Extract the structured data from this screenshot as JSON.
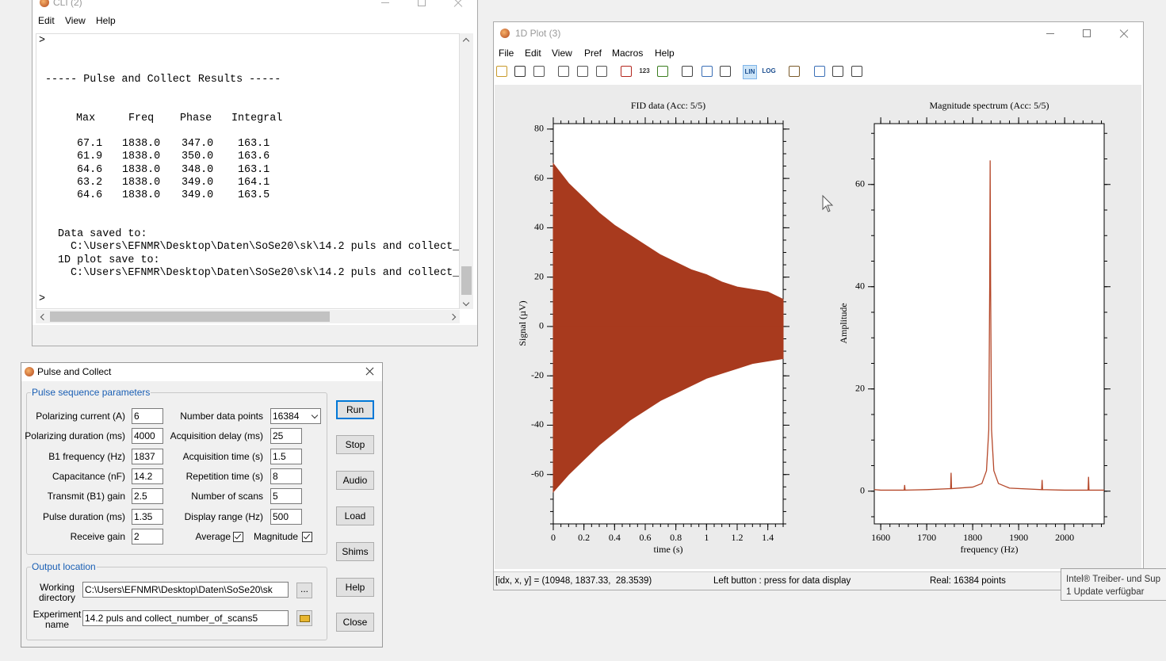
{
  "cli_window": {
    "title": "CLI (2)",
    "menu": [
      "Edit",
      "View",
      "Help"
    ],
    "prompts": [
      ">",
      ">"
    ],
    "heading": "----- Pulse and Collect Results -----",
    "table": {
      "header": [
        "Max",
        "Freq",
        "Phase",
        "Integral"
      ],
      "rows": [
        [
          "67.1",
          "1838.0",
          "347.0",
          "163.1"
        ],
        [
          "61.9",
          "1838.0",
          "350.0",
          "163.6"
        ],
        [
          "64.6",
          "1838.0",
          "348.0",
          "163.1"
        ],
        [
          "63.2",
          "1838.0",
          "349.0",
          "164.1"
        ],
        [
          "64.6",
          "1838.0",
          "349.0",
          "163.5"
        ]
      ]
    },
    "saved": [
      "Data saved to:",
      "C:\\Users\\EFNMR\\Desktop\\Daten\\SoSe20\\sk\\14.2 puls and collect_",
      "1D plot save to:",
      "C:\\Users\\EFNMR\\Desktop\\Daten\\SoSe20\\sk\\14.2 puls and collect_"
    ]
  },
  "pulse_dialog": {
    "title": "Pulse and Collect",
    "group_params": "Pulse sequence parameters",
    "params_left": [
      {
        "label": "Polarizing current (A)",
        "value": "6"
      },
      {
        "label": "Polarizing duration (ms)",
        "value": "4000"
      },
      {
        "label": "B1 frequency (Hz)",
        "value": "1837"
      },
      {
        "label": "Capacitance (nF)",
        "value": "14.2"
      },
      {
        "label": "Transmit (B1) gain",
        "value": "2.5"
      },
      {
        "label": "Pulse duration (ms)",
        "value": "1.35"
      },
      {
        "label": "Receive gain",
        "value": "2"
      }
    ],
    "params_right": [
      {
        "label": "Number data points",
        "value": "16384"
      },
      {
        "label": "Acquisition delay (ms)",
        "value": "25"
      },
      {
        "label": "Acquisition time (s)",
        "value": "1.5"
      },
      {
        "label": "Repetition time (s)",
        "value": "8"
      },
      {
        "label": "Number of scans",
        "value": "5"
      },
      {
        "label": "Display range (Hz)",
        "value": "500"
      }
    ],
    "checkboxes": [
      {
        "label": "Average",
        "checked": true
      },
      {
        "label": "Magnitude",
        "checked": true
      }
    ],
    "group_output": "Output location",
    "working_directory": {
      "label": "Working directory",
      "value": "C:\\Users\\EFNMR\\Desktop\\Daten\\SoSe20\\sk"
    },
    "browse_button": "...",
    "experiment_name": {
      "label": "Experiment name",
      "value": "14.2 puls and collect_number_of_scans5"
    },
    "buttons": [
      "Run",
      "Stop",
      "Audio",
      "Load",
      "Shims",
      "Help",
      "Close"
    ]
  },
  "plot_window": {
    "title": "1D Plot (3)",
    "menu": [
      "File",
      "Edit",
      "View",
      "Pref",
      "Macros",
      "Help"
    ],
    "toolbar_labels": [
      "123",
      "LIN",
      "LOG"
    ],
    "status": [
      "[idx, x, y] = (10948, 1837.33,  28.3539)",
      "Left button : press for data display",
      "Real: 16384 points"
    ]
  },
  "tooltip": {
    "lines": [
      "Intel® Treiber- und Sup",
      "1 Update verfügbar"
    ]
  },
  "chart_data": [
    {
      "type": "area",
      "title": "FID data (Acc: 5/5)",
      "xlabel": "time (s)",
      "ylabel": "Signal (µV)",
      "x": [
        0,
        0.1,
        0.2,
        0.3,
        0.4,
        0.5,
        0.6,
        0.7,
        0.8,
        0.9,
        1.0,
        1.1,
        1.2,
        1.3,
        1.4,
        1.5
      ],
      "series": [
        {
          "color": "#a83a1e",
          "values": [
            66,
            58,
            52,
            46,
            41,
            37,
            33,
            29,
            26,
            23,
            21,
            18,
            16,
            15,
            14,
            11
          ]
        },
        {
          "color": "#a83a1e",
          "values": [
            -67,
            -60,
            -54,
            -48,
            -43,
            -38,
            -34,
            -30,
            -27,
            -24,
            -21,
            -19,
            -17,
            -15,
            -14,
            -13
          ]
        }
      ],
      "xlim": [
        0,
        1.5
      ],
      "ylim": [
        -80,
        82.2
      ],
      "xticks": [
        0,
        0.2,
        0.4,
        0.6,
        0.8,
        1,
        1.2,
        1.4
      ],
      "yticks": [
        -60,
        -40,
        -20,
        0,
        20,
        40,
        60,
        80
      ]
    },
    {
      "type": "line",
      "title": "Magnitude spectrum (Acc: 5/5)",
      "xlabel": "frequency (Hz)",
      "ylabel": "Amplitude",
      "x": [
        1586,
        1600,
        1651,
        1652,
        1653,
        1700,
        1752,
        1753,
        1754,
        1800,
        1820,
        1830,
        1835,
        1837,
        1838,
        1839,
        1841,
        1846,
        1856,
        1880,
        1950,
        1951,
        1952,
        2000,
        2051,
        2052,
        2053,
        2086
      ],
      "series": [
        {
          "color": "#b5482a",
          "values": [
            0.3,
            0.2,
            0.2,
            1.2,
            0.2,
            0.3,
            0.5,
            3.6,
            0.5,
            0.8,
            1.5,
            4,
            12,
            40,
            64.7,
            40,
            12,
            4,
            1.5,
            0.6,
            0.3,
            2.2,
            0.3,
            0.2,
            0.2,
            2.8,
            0.2,
            0.2
          ]
        }
      ],
      "xlim": [
        1586,
        2086
      ],
      "ylim": [
        -6.4,
        71.9
      ],
      "xticks": [
        1600,
        1700,
        1800,
        1900,
        2000
      ],
      "yticks": [
        0,
        20,
        40,
        60
      ]
    }
  ]
}
